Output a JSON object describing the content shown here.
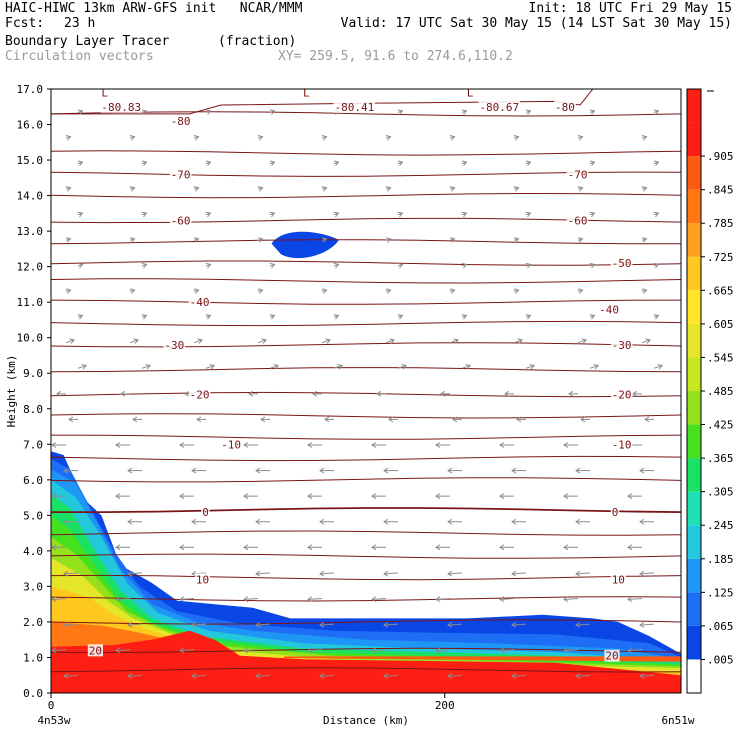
{
  "header": {
    "model_line": "HAIC-HIWC 13km ARW-GFS init   NCAR/MMM",
    "init_line": "Init: 18 UTC Fri 29 May 15",
    "fcst_label": "Fcst:",
    "fcst_value": "23 h",
    "valid_line": "Valid: 17 UTC Sat 30 May 15 (14 LST Sat 30 May 15)",
    "field_name": "Boundary Layer Tracer",
    "field_units": "(fraction)",
    "vector_label": "Circulation vectors",
    "xy_line": "XY= 259.5, 91.6 to 274.6,110.2"
  },
  "chart_data": {
    "type": "heatmap",
    "ylabel": "Height (km)",
    "xlabel": "Distance (km)",
    "ylim": [
      0,
      17
    ],
    "xlim": [
      0,
      320
    ],
    "y_ticks": [
      "0.0",
      "1.0",
      "2.0",
      "3.0",
      "4.0",
      "5.0",
      "6.0",
      "7.0",
      "8.0",
      "9.0",
      "10.0",
      "11.0",
      "12.0",
      "13.0",
      "14.0",
      "15.0",
      "16.0",
      "17.0"
    ],
    "x_ticks": [
      {
        "value": 0,
        "label": "0"
      },
      {
        "value": 200,
        "label": "200"
      }
    ],
    "x_endpoint_labels": {
      "left": "4n53w",
      "right": "6n51w"
    },
    "colorbar": {
      "labels": [
        ".005",
        ".065",
        ".125",
        ".185",
        ".245",
        ".305",
        ".365",
        ".425",
        ".485",
        ".545",
        ".605",
        ".665",
        ".725",
        ".785",
        ".845",
        ".905"
      ],
      "colors": [
        "#ffffff",
        "#0a46e6",
        "#1e6ef5",
        "#1e96f5",
        "#23c8dc",
        "#1ee1b4",
        "#19e164",
        "#46e11e",
        "#96e11e",
        "#c8e61e",
        "#e6e628",
        "#ffe628",
        "#ffc81e",
        "#ffa01e",
        "#ff7814",
        "#ff5a14",
        "#ff1e14",
        "#ff1e14"
      ]
    },
    "contours": {
      "color": "#7a1414",
      "labels": [
        "-80.83",
        "-80.41",
        "-80.67",
        "-80",
        "-80",
        "-70",
        "-70",
        "-60",
        "-60",
        "-50",
        "-40",
        "-40",
        "-30",
        "-30",
        "-20",
        "-20",
        "-10",
        "-10",
        "0",
        "0",
        "10",
        "10",
        "20",
        "20"
      ],
      "low_marker": "L"
    },
    "colors": {
      "arrow": "#8c8c8c",
      "contour": "#7a1414",
      "low_blob": "#0a46e6"
    }
  }
}
